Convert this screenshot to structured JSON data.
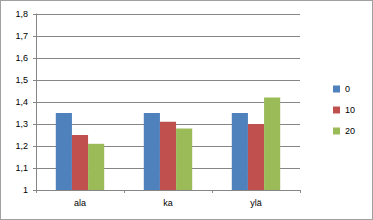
{
  "chart_data": {
    "type": "bar",
    "categories": [
      "ala",
      "ka",
      "ylä"
    ],
    "series": [
      {
        "name": "0",
        "color": "#4f81bd",
        "values": [
          1.35,
          1.35,
          1.35
        ]
      },
      {
        "name": "10",
        "color": "#c0504d",
        "values": [
          1.25,
          1.31,
          1.3
        ]
      },
      {
        "name": "20",
        "color": "#9bbb59",
        "values": [
          1.21,
          1.28,
          1.42
        ]
      }
    ],
    "ylim": [
      1,
      1.8
    ],
    "yticks": [
      1,
      {
        "value": 1.1,
        "label": "1,1"
      },
      {
        "value": 1.2,
        "label": "1,2"
      },
      {
        "value": 1.3,
        "label": "1,3"
      },
      {
        "value": 1.4,
        "label": "1,4"
      },
      {
        "value": 1.5,
        "label": "1,5"
      },
      {
        "value": 1.6,
        "label": "1,6"
      },
      {
        "value": 1.7,
        "label": "1,7"
      },
      {
        "value": 1.8,
        "label": "1,8"
      }
    ],
    "grid": true,
    "legend": "right"
  }
}
